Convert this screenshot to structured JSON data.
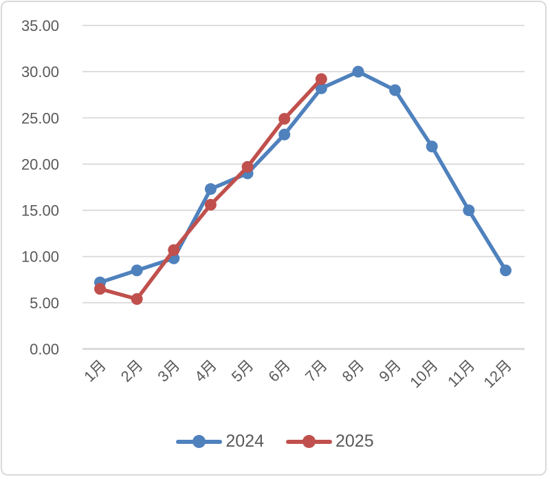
{
  "chart_data": {
    "type": "line",
    "title": "",
    "xlabel": "",
    "ylabel": "",
    "categories": [
      "1月",
      "2月",
      "3月",
      "4月",
      "5月",
      "6月",
      "7月",
      "8月",
      "9月",
      "10月",
      "11月",
      "12月"
    ],
    "series": [
      {
        "name": "2024",
        "color": "#4F81BD",
        "values": [
          7.2,
          8.5,
          9.8,
          17.3,
          19.0,
          23.2,
          28.2,
          30.0,
          28.0,
          21.9,
          15.0,
          8.5
        ]
      },
      {
        "name": "2025",
        "color": "#C0504D",
        "values": [
          6.5,
          5.4,
          10.7,
          15.6,
          19.7,
          24.9,
          29.2
        ]
      }
    ],
    "ylim": [
      0,
      35
    ],
    "ytick_step": 5,
    "ytick_decimals": 2,
    "ytick_labels": [
      "0.00",
      "5.00",
      "10.00",
      "15.00",
      "20.00",
      "25.00",
      "30.00",
      "35.00"
    ],
    "grid": true,
    "legend_position": "bottom",
    "x_label_rotation_deg": -45,
    "colors": {
      "gridline": "#d9d9d9",
      "axis_line": "#d3d3d3",
      "tick_text": "#595959",
      "chart_border": "#d9d9d9",
      "background": "#ffffff"
    }
  }
}
